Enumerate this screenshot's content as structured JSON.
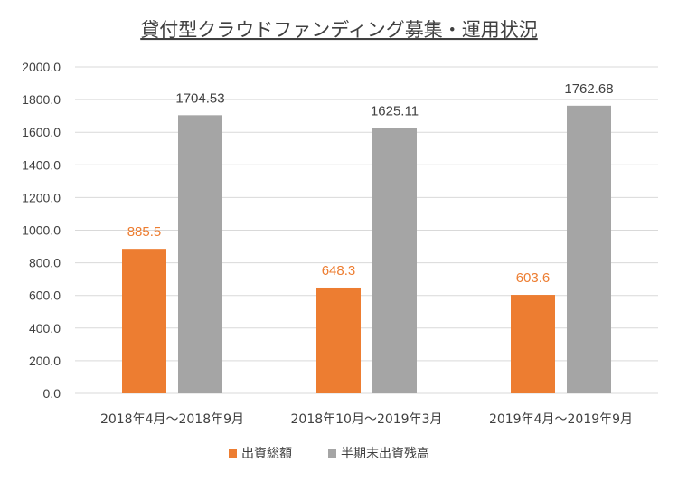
{
  "chart_data": {
    "type": "bar",
    "title": "貸付型クラウドファンディング募集・運用状況",
    "categories": [
      "2018年4月～2018年9月",
      "2018年10月～2019年3月",
      "2019年4月～2019年9月"
    ],
    "series": [
      {
        "name": "出資総額",
        "values": [
          885.5,
          648.3,
          603.6
        ],
        "labels": [
          "885.5",
          "648.3",
          "603.6"
        ],
        "color": "#ed7d31"
      },
      {
        "name": "半期末出資残高",
        "values": [
          1704.53,
          1625.11,
          1762.68
        ],
        "labels": [
          "1704.53",
          "1625.11",
          "1762.68"
        ],
        "color": "#a5a5a5"
      }
    ],
    "ylim": [
      0,
      2000
    ],
    "yticks": [
      "0.0",
      "200.0",
      "400.0",
      "600.0",
      "800.0",
      "1000.0",
      "1200.0",
      "1400.0",
      "1600.0",
      "1800.0",
      "2000.0"
    ],
    "grid": true,
    "legend": "bottom"
  }
}
